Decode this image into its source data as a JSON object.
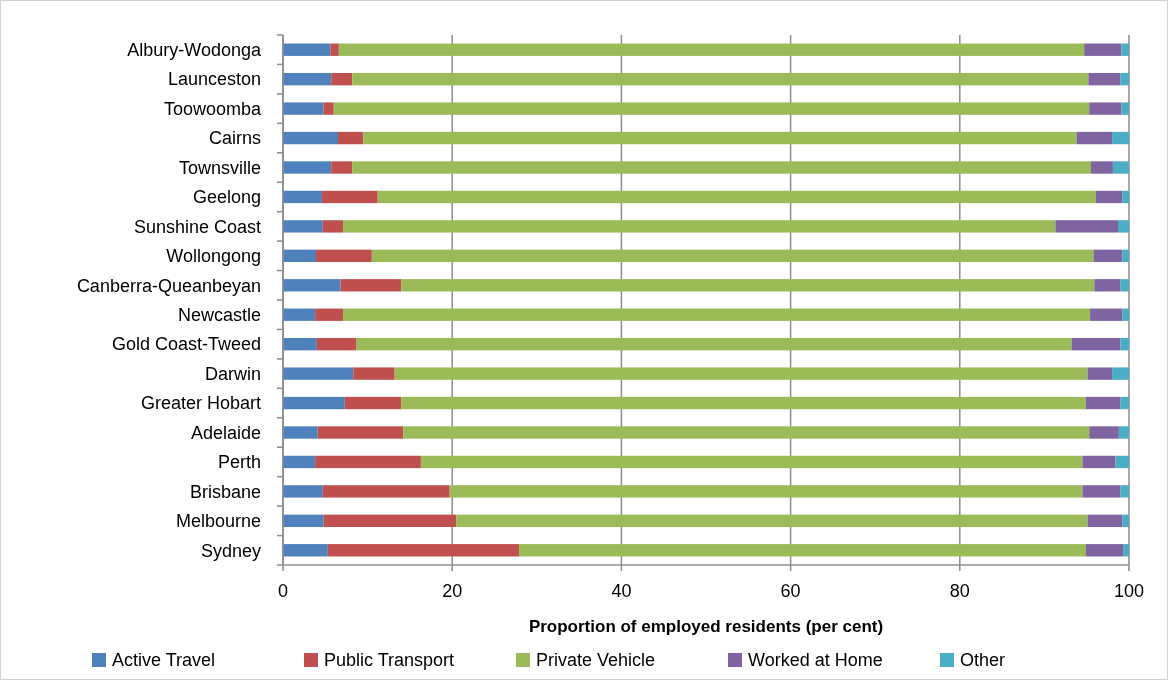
{
  "chart_data": {
    "type": "bar",
    "orientation": "horizontal",
    "stacked": true,
    "xlabel": "Proportion of employed residents (per cent)",
    "categories": [
      "Albury-Wodonga",
      "Launceston",
      "Toowoomba",
      "Cairns",
      "Townsville",
      "Geelong",
      "Sunshine Coast",
      "Wollongong",
      "Canberra-Queanbeyan",
      "Newcastle",
      "Gold Coast-Tweed",
      "Darwin",
      "Greater Hobart",
      "Adelaide",
      "Perth",
      "Brisbane",
      "Melbourne",
      "Sydney"
    ],
    "series": [
      {
        "name": "Active Travel",
        "color": "#4f81bd",
        "values": [
          5.6,
          5.7,
          4.8,
          6.5,
          5.7,
          4.6,
          4.7,
          3.9,
          6.8,
          3.8,
          4.0,
          8.3,
          7.3,
          4.1,
          3.8,
          4.7,
          4.8,
          5.3
        ]
      },
      {
        "name": "Public Transport",
        "color": "#c0504d",
        "values": [
          1.0,
          2.5,
          1.2,
          3.0,
          2.5,
          6.6,
          2.4,
          6.6,
          7.2,
          3.3,
          4.7,
          4.9,
          6.7,
          10.1,
          12.5,
          15.0,
          15.7,
          22.6
        ]
      },
      {
        "name": "Private Vehicle",
        "color": "#9bbb59",
        "values": [
          88.1,
          87.0,
          89.3,
          84.3,
          87.3,
          84.9,
          84.2,
          85.3,
          81.9,
          88.3,
          84.5,
          81.9,
          80.9,
          81.1,
          78.2,
          74.8,
          74.6,
          67.0
        ]
      },
      {
        "name": "Worked at Home",
        "color": "#8064a2",
        "values": [
          4.4,
          3.8,
          3.8,
          4.2,
          2.6,
          3.1,
          7.4,
          3.4,
          3.1,
          3.8,
          5.8,
          2.9,
          4.1,
          3.5,
          3.9,
          4.5,
          4.1,
          4.4
        ]
      },
      {
        "name": "Other",
        "color": "#4bacc6",
        "values": [
          0.9,
          1.0,
          0.9,
          2.0,
          1.9,
          0.8,
          1.3,
          0.8,
          1.0,
          0.8,
          1.0,
          2.0,
          1.0,
          1.2,
          1.6,
          1.0,
          0.8,
          0.7
        ]
      }
    ],
    "xlim": [
      0,
      100
    ],
    "xticks": [
      0,
      20,
      40,
      60,
      80,
      100
    ],
    "grid": "x",
    "legend": "bottom"
  }
}
